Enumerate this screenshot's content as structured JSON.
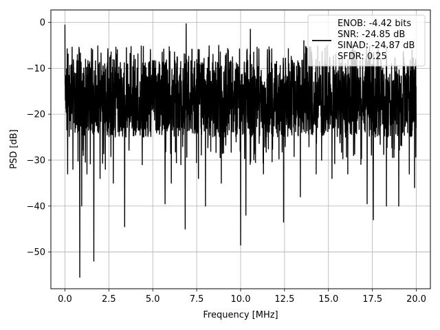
{
  "chart_data": {
    "type": "line",
    "xlabel": "Frequency [MHz]",
    "ylabel": "PSD [dB]",
    "xlim": [
      -0.8,
      20.8
    ],
    "ylim": [
      -58,
      2.7
    ],
    "x_ticks": [
      0.0,
      2.5,
      5.0,
      7.5,
      10.0,
      12.5,
      15.0,
      17.5,
      20.0
    ],
    "x_tick_labels": [
      "0.0",
      "2.5",
      "5.0",
      "7.5",
      "10.0",
      "12.5",
      "15.0",
      "17.5",
      "20.0"
    ],
    "y_ticks": [
      0,
      -10,
      -20,
      -30,
      -40,
      -50
    ],
    "y_tick_labels": [
      "0",
      "−10",
      "−20",
      "−30",
      "−40",
      "−50"
    ],
    "grid": true,
    "legend_position": "top-right",
    "series": [
      {
        "name": "ENOB: -4.42 bits\nSNR: -24.85 dB\nSINAD: -24.87 dB\nSFDR: 0.25",
        "color": "#000000",
        "x_range": [
          0,
          20
        ],
        "baseline_range": [
          -25,
          -8
        ],
        "dips": [
          {
            "x": 0.15,
            "y": -33
          },
          {
            "x": 0.45,
            "y": -32
          },
          {
            "x": 0.85,
            "y": -55.5
          },
          {
            "x": 0.95,
            "y": -40
          },
          {
            "x": 1.25,
            "y": -33
          },
          {
            "x": 1.65,
            "y": -52
          },
          {
            "x": 2.0,
            "y": -34
          },
          {
            "x": 2.3,
            "y": -32
          },
          {
            "x": 2.75,
            "y": -35
          },
          {
            "x": 3.4,
            "y": -44.5
          },
          {
            "x": 4.4,
            "y": -31
          },
          {
            "x": 5.7,
            "y": -39.5
          },
          {
            "x": 6.05,
            "y": -35
          },
          {
            "x": 6.6,
            "y": -31
          },
          {
            "x": 6.85,
            "y": -45
          },
          {
            "x": 7.6,
            "y": -34
          },
          {
            "x": 8.0,
            "y": -40
          },
          {
            "x": 8.9,
            "y": -35
          },
          {
            "x": 10.0,
            "y": -48.5
          },
          {
            "x": 10.3,
            "y": -42
          },
          {
            "x": 11.3,
            "y": -33
          },
          {
            "x": 12.45,
            "y": -43.5
          },
          {
            "x": 13.4,
            "y": -38
          },
          {
            "x": 14.3,
            "y": -33
          },
          {
            "x": 15.2,
            "y": -34
          },
          {
            "x": 16.1,
            "y": -33
          },
          {
            "x": 17.2,
            "y": -39.5
          },
          {
            "x": 17.55,
            "y": -43
          },
          {
            "x": 18.3,
            "y": -40
          },
          {
            "x": 19.0,
            "y": -40
          },
          {
            "x": 19.6,
            "y": -33
          },
          {
            "x": 19.9,
            "y": -36
          }
        ],
        "peaks": [
          {
            "x": 0.0,
            "y": -0.5
          },
          {
            "x": 6.9,
            "y": -0.3
          },
          {
            "x": 10.55,
            "y": -1.5
          },
          {
            "x": 3.5,
            "y": -5.5
          },
          {
            "x": 8.75,
            "y": -5.0
          },
          {
            "x": 13.6,
            "y": -4.0
          }
        ]
      }
    ]
  }
}
